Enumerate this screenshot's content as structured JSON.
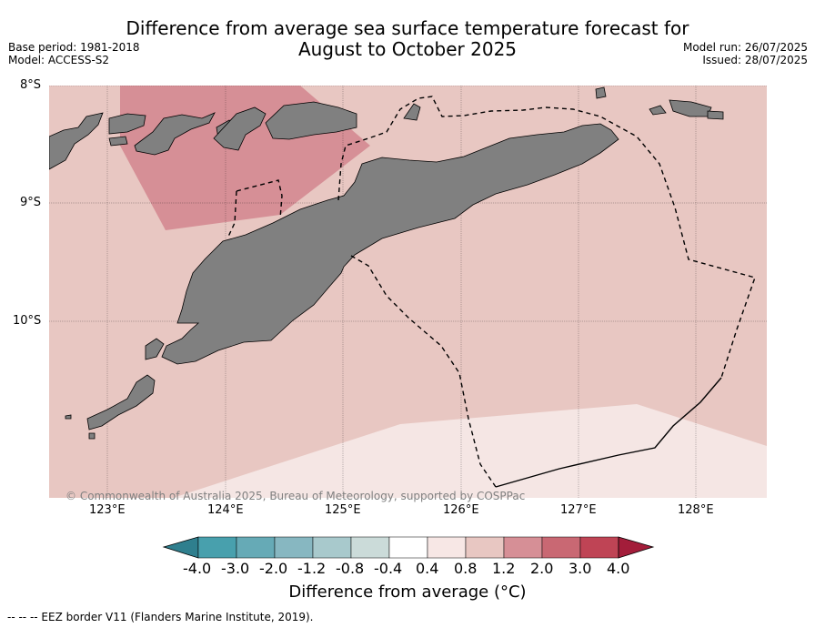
{
  "title_line1": "Difference from average sea surface temperature forecast for",
  "title_line2": "August to October 2025",
  "base_period": "Base period: 1981-2018",
  "model": "Model: ACCESS-S2",
  "model_run": "Model run: 26/07/2025",
  "issued": "Issued: 28/07/2025",
  "copyright": "© Commonwealth of Australia 2025, Bureau of Meteorology, supported by COSPPac",
  "lat_labels": [
    "8°S",
    "9°S",
    "10°S"
  ],
  "lon_labels": [
    "123°E",
    "124°E",
    "125°E",
    "126°E",
    "127°E",
    "128°E"
  ],
  "colorbar": {
    "ticks": [
      "-4.0",
      "-3.0",
      "-2.0",
      "-1.2",
      "-0.8",
      "-0.4",
      "0.4",
      "0.8",
      "1.2",
      "2.0",
      "3.0",
      "4.0"
    ],
    "colors": [
      "#2f7f8e",
      "#48a0ad",
      "#66aab6",
      "#87b7c1",
      "#a8c9cc",
      "#cbdbd9",
      "#ffffff",
      "#f7e7e5",
      "#e8c7c2",
      "#d68f96",
      "#c96873",
      "#bf4455",
      "#a31d3a"
    ],
    "label": "Difference from average (°C)"
  },
  "eez_legend": "--  --  -- EEZ border V11 (Flanders Marine Institute, 2019)."
}
